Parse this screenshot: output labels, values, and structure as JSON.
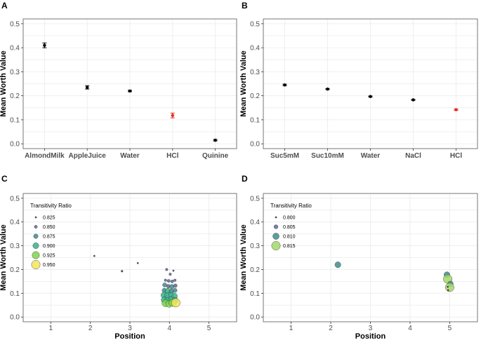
{
  "chart_data": [
    {
      "panel": "A",
      "type": "errorbar",
      "ylabel": "Mean Worth Value",
      "xlabel": "",
      "ylim": [
        -0.02,
        0.52
      ],
      "yticks": [
        "0.0",
        "0.1",
        "0.2",
        "0.3",
        "0.4",
        "0.5"
      ],
      "categories": [
        "AlmondMilk",
        "AppleJuice",
        "Water",
        "HCl",
        "Quinine"
      ],
      "values": [
        0.41,
        0.235,
        0.22,
        0.118,
        0.015
      ],
      "errors": [
        0.01,
        0.007,
        0.003,
        0.01,
        0.003
      ],
      "colors": [
        "#000000",
        "#000000",
        "#000000",
        "#e8291c",
        "#000000"
      ]
    },
    {
      "panel": "B",
      "type": "errorbar",
      "ylabel": "Mean Worth Value",
      "xlabel": "",
      "ylim": [
        -0.02,
        0.52
      ],
      "yticks": [
        "0.0",
        "0.1",
        "0.2",
        "0.3",
        "0.4",
        "0.5"
      ],
      "categories": [
        "Suc5mM",
        "Suc10mM",
        "Water",
        "NaCl",
        "HCl"
      ],
      "values": [
        0.245,
        0.228,
        0.197,
        0.183,
        0.142
      ],
      "errors": [
        0.003,
        0.002,
        0.002,
        0.002,
        0.003
      ],
      "colors": [
        "#000000",
        "#000000",
        "#000000",
        "#000000",
        "#e8291c"
      ]
    },
    {
      "panel": "C",
      "type": "scatter",
      "xlabel": "Position",
      "ylabel": "Mean Worth Value",
      "xlim": [
        0.3,
        5.7
      ],
      "ylim": [
        -0.02,
        0.52
      ],
      "xticks": [
        "1",
        "2",
        "3",
        "4",
        "5"
      ],
      "yticks": [
        "0.0",
        "0.1",
        "0.2",
        "0.3",
        "0.4",
        "0.5"
      ],
      "legend": {
        "title": "Transitivity Ratio",
        "labels": [
          "0.825",
          "0.850",
          "0.875",
          "0.900",
          "0.925",
          "0.950"
        ],
        "colors": [
          "#44306f",
          "#5f6a96",
          "#3f8c8c",
          "#36b38b",
          "#7fd34e",
          "#f2e55c"
        ],
        "placement": "top-left"
      },
      "points": [
        {
          "x": 2.1,
          "y": 0.257,
          "r": 0.805
        },
        {
          "x": 2.8,
          "y": 0.193,
          "r": 0.83
        },
        {
          "x": 3.2,
          "y": 0.227,
          "r": 0.805
        },
        {
          "x": 3.93,
          "y": 0.2,
          "r": 0.84
        },
        {
          "x": 4.1,
          "y": 0.195,
          "r": 0.805
        },
        {
          "x": 4.02,
          "y": 0.18,
          "r": 0.84
        },
        {
          "x": 3.9,
          "y": 0.155,
          "r": 0.84
        },
        {
          "x": 3.98,
          "y": 0.152,
          "r": 0.85
        },
        {
          "x": 4.07,
          "y": 0.15,
          "r": 0.85
        },
        {
          "x": 4.14,
          "y": 0.155,
          "r": 0.84
        },
        {
          "x": 3.88,
          "y": 0.135,
          "r": 0.87
        },
        {
          "x": 3.97,
          "y": 0.13,
          "r": 0.86
        },
        {
          "x": 4.06,
          "y": 0.128,
          "r": 0.875
        },
        {
          "x": 4.15,
          "y": 0.132,
          "r": 0.86
        },
        {
          "x": 3.87,
          "y": 0.112,
          "r": 0.875
        },
        {
          "x": 3.96,
          "y": 0.11,
          "r": 0.89
        },
        {
          "x": 4.05,
          "y": 0.108,
          "r": 0.88
        },
        {
          "x": 4.14,
          "y": 0.112,
          "r": 0.87
        },
        {
          "x": 3.86,
          "y": 0.092,
          "r": 0.9
        },
        {
          "x": 3.95,
          "y": 0.09,
          "r": 0.9
        },
        {
          "x": 4.04,
          "y": 0.093,
          "r": 0.89
        },
        {
          "x": 4.13,
          "y": 0.088,
          "r": 0.895
        },
        {
          "x": 3.87,
          "y": 0.072,
          "r": 0.905
        },
        {
          "x": 3.96,
          "y": 0.07,
          "r": 0.91
        },
        {
          "x": 4.05,
          "y": 0.074,
          "r": 0.9
        },
        {
          "x": 4.14,
          "y": 0.07,
          "r": 0.905
        },
        {
          "x": 3.9,
          "y": 0.058,
          "r": 0.92
        },
        {
          "x": 3.99,
          "y": 0.055,
          "r": 0.915
        },
        {
          "x": 4.08,
          "y": 0.06,
          "r": 0.925
        },
        {
          "x": 4.16,
          "y": 0.06,
          "r": 0.95
        }
      ]
    },
    {
      "panel": "D",
      "type": "scatter",
      "xlabel": "Position",
      "ylabel": "Mean Worth Value",
      "xlim": [
        0.3,
        5.7
      ],
      "ylim": [
        -0.02,
        0.52
      ],
      "xticks": [
        "1",
        "2",
        "3",
        "4",
        "5"
      ],
      "yticks": [
        "0.0",
        "0.1",
        "0.2",
        "0.3",
        "0.4",
        "0.5"
      ],
      "legend": {
        "title": "Transitivity Ratio",
        "labels": [
          "0.800",
          "0.805",
          "0.810",
          "0.815"
        ],
        "colors": [
          "#44306f",
          "#5f6a96",
          "#3f8c8c",
          "#a5d86a"
        ],
        "placement": "top-left"
      },
      "points": [
        {
          "x": 2.18,
          "y": 0.22,
          "r": 0.809
        },
        {
          "x": 4.93,
          "y": 0.178,
          "r": 0.809
        },
        {
          "x": 4.95,
          "y": 0.16,
          "r": 0.815
        },
        {
          "x": 5.02,
          "y": 0.14,
          "r": 0.808
        },
        {
          "x": 5.0,
          "y": 0.125,
          "r": 0.815
        },
        {
          "x": 4.95,
          "y": 0.127,
          "r": 0.8
        },
        {
          "x": 4.96,
          "y": 0.113,
          "r": 0.8
        }
      ]
    }
  ],
  "panel_labels": {
    "a": "A",
    "b": "B",
    "c": "C",
    "d": "D"
  }
}
